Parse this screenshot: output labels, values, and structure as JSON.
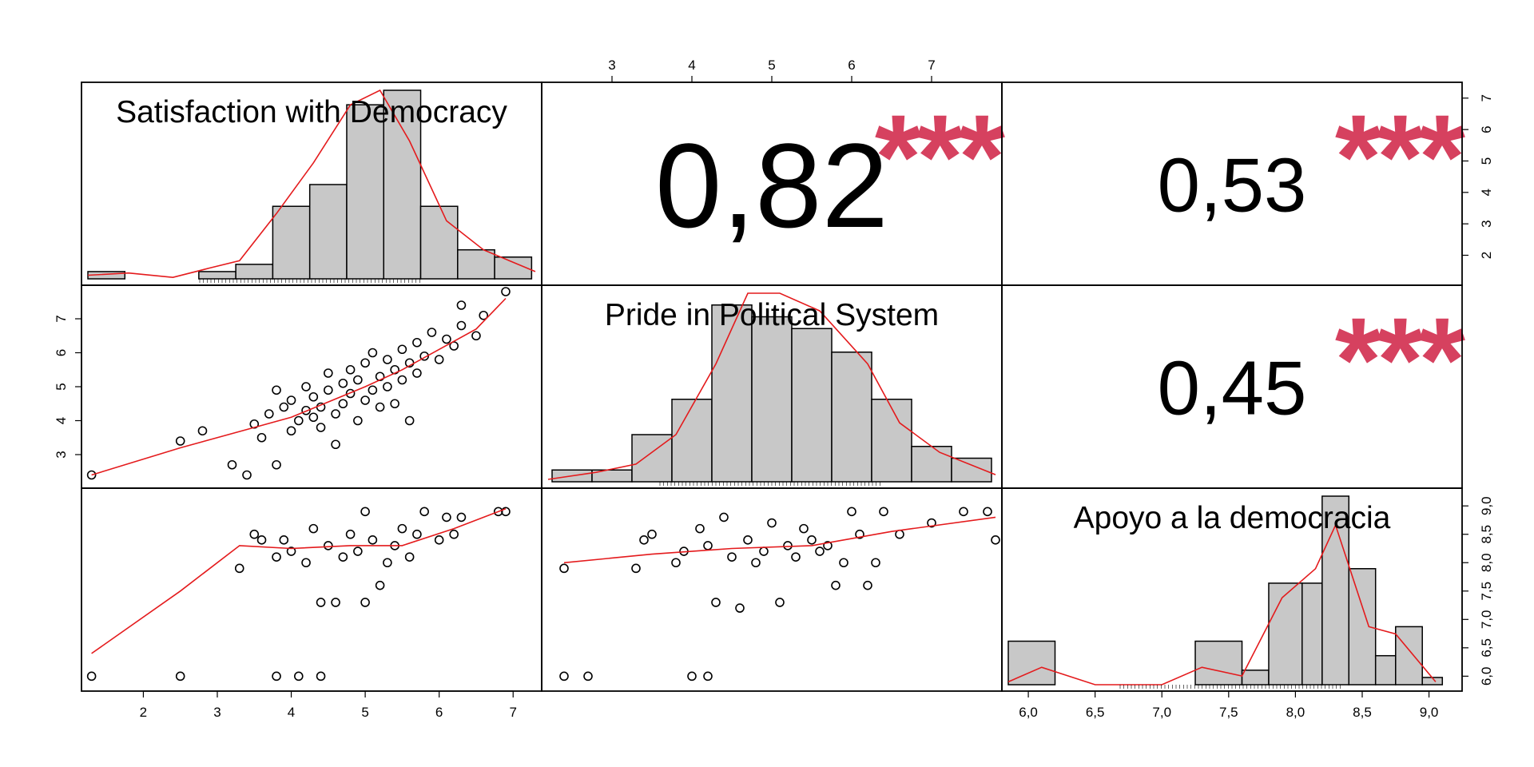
{
  "chart_data": {
    "type": "scatter-matrix",
    "variables": [
      {
        "name": "Satisfaction with Democracy",
        "ticks": [
          "2",
          "3",
          "4",
          "5",
          "6",
          "7"
        ],
        "range": [
          1.25,
          7.3
        ]
      },
      {
        "name": "Pride in Political System",
        "ticks": [
          "3",
          "4",
          "5",
          "6",
          "7"
        ],
        "range": [
          2.2,
          7.8
        ]
      },
      {
        "name": "Apoyo a la democracia",
        "ticks": [
          "6,0",
          "6,5",
          "7,0",
          "7,5",
          "8,0",
          "8,5",
          "9,0"
        ],
        "range": [
          5.85,
          9.2
        ]
      }
    ],
    "correlations": [
      {
        "pair": "Satisfaction with Democracy / Pride in Political System",
        "value": "0,82",
        "stars": "***"
      },
      {
        "pair": "Satisfaction with Democracy / Apoyo a la democracia",
        "value": "0,53",
        "stars": "***"
      },
      {
        "pair": "Pride in Political System / Apoyo a la democracia",
        "value": "0,45",
        "stars": "***"
      }
    ],
    "histograms": [
      {
        "variable": "Satisfaction with Democracy",
        "breaks": [
          1.25,
          1.75,
          2.25,
          2.75,
          3.25,
          3.75,
          4.25,
          4.75,
          5.25,
          5.75,
          6.25,
          6.75,
          7.25
        ],
        "counts": [
          1,
          0,
          0,
          1,
          2,
          10,
          13,
          24,
          26,
          10,
          4,
          3
        ],
        "density": [
          [
            1.25,
            0.5
          ],
          [
            1.8,
            0.8
          ],
          [
            2.4,
            0.2
          ],
          [
            2.9,
            1.5
          ],
          [
            3.3,
            2.5
          ],
          [
            3.8,
            9
          ],
          [
            4.3,
            16
          ],
          [
            4.8,
            24
          ],
          [
            5.2,
            26
          ],
          [
            5.6,
            19
          ],
          [
            6.1,
            8
          ],
          [
            6.6,
            4
          ],
          [
            7.3,
            1
          ]
        ]
      },
      {
        "variable": "Pride in Political System",
        "breaks": [
          2.25,
          2.75,
          3.25,
          3.75,
          4.25,
          4.75,
          5.25,
          5.75,
          6.25,
          6.75,
          7.25,
          7.75
        ],
        "counts": [
          1,
          1,
          4,
          7,
          15,
          14,
          13,
          11,
          7,
          3,
          2
        ],
        "density": [
          [
            2.2,
            0.2
          ],
          [
            2.8,
            0.8
          ],
          [
            3.3,
            1.5
          ],
          [
            3.8,
            4
          ],
          [
            4.3,
            10
          ],
          [
            4.7,
            16
          ],
          [
            5.1,
            16
          ],
          [
            5.6,
            14.5
          ],
          [
            6.2,
            10
          ],
          [
            6.6,
            5
          ],
          [
            7.1,
            2.5
          ],
          [
            7.8,
            0.6
          ]
        ]
      },
      {
        "variable": "Apoyo a la democracia",
        "breaks": [
          5.85,
          6.2,
          6.55,
          6.9,
          7.25,
          7.6,
          7.8,
          8.05,
          8.2,
          8.4,
          8.6,
          8.75,
          8.95,
          9.1
        ],
        "counts": [
          3,
          0,
          0,
          0,
          3,
          1,
          7,
          7,
          13,
          8,
          2,
          4,
          0.5
        ],
        "density": [
          [
            5.85,
            0.2
          ],
          [
            6.1,
            1.2
          ],
          [
            6.5,
            0
          ],
          [
            7.0,
            0
          ],
          [
            7.3,
            1.2
          ],
          [
            7.6,
            0.6
          ],
          [
            7.9,
            6
          ],
          [
            8.15,
            8
          ],
          [
            8.3,
            11
          ],
          [
            8.55,
            4
          ],
          [
            8.75,
            3.5
          ],
          [
            9.05,
            0.2
          ]
        ]
      }
    ],
    "scatter": [
      {
        "x_variable": "Satisfaction with Democracy",
        "y_variable": "Pride in Political System",
        "points": [
          [
            1.3,
            2.4
          ],
          [
            2.5,
            3.4
          ],
          [
            2.8,
            3.7
          ],
          [
            3.2,
            2.7
          ],
          [
            3.4,
            2.4
          ],
          [
            3.5,
            3.9
          ],
          [
            3.6,
            3.5
          ],
          [
            3.7,
            4.2
          ],
          [
            3.8,
            2.7
          ],
          [
            3.8,
            4.9
          ],
          [
            3.9,
            4.4
          ],
          [
            4.0,
            3.7
          ],
          [
            4.0,
            4.6
          ],
          [
            4.1,
            4.0
          ],
          [
            4.2,
            4.3
          ],
          [
            4.2,
            5.0
          ],
          [
            4.3,
            4.1
          ],
          [
            4.3,
            4.7
          ],
          [
            4.4,
            3.8
          ],
          [
            4.4,
            4.4
          ],
          [
            4.5,
            4.9
          ],
          [
            4.5,
            5.4
          ],
          [
            4.6,
            3.3
          ],
          [
            4.6,
            4.2
          ],
          [
            4.7,
            4.5
          ],
          [
            4.7,
            5.1
          ],
          [
            4.8,
            4.8
          ],
          [
            4.8,
            5.5
          ],
          [
            4.9,
            4.0
          ],
          [
            4.9,
            5.2
          ],
          [
            5.0,
            4.6
          ],
          [
            5.0,
            5.7
          ],
          [
            5.1,
            4.9
          ],
          [
            5.1,
            6.0
          ],
          [
            5.2,
            4.4
          ],
          [
            5.2,
            5.3
          ],
          [
            5.3,
            5.0
          ],
          [
            5.3,
            5.8
          ],
          [
            5.4,
            4.5
          ],
          [
            5.4,
            5.5
          ],
          [
            5.5,
            6.1
          ],
          [
            5.5,
            5.2
          ],
          [
            5.6,
            4.0
          ],
          [
            5.6,
            5.7
          ],
          [
            5.7,
            6.3
          ],
          [
            5.7,
            5.4
          ],
          [
            5.8,
            5.9
          ],
          [
            5.9,
            6.6
          ],
          [
            6.0,
            5.8
          ],
          [
            6.1,
            6.4
          ],
          [
            6.2,
            6.2
          ],
          [
            6.3,
            6.8
          ],
          [
            6.3,
            7.4
          ],
          [
            6.5,
            6.5
          ],
          [
            6.6,
            7.1
          ],
          [
            6.9,
            7.8
          ]
        ],
        "smooth": [
          [
            1.3,
            2.4
          ],
          [
            2.5,
            3.2
          ],
          [
            3.5,
            3.8
          ],
          [
            4.0,
            4.1
          ],
          [
            4.5,
            4.55
          ],
          [
            5.0,
            5.0
          ],
          [
            5.5,
            5.5
          ],
          [
            6.0,
            6.1
          ],
          [
            6.5,
            6.7
          ],
          [
            6.9,
            7.6
          ]
        ]
      },
      {
        "x_variable": "Satisfaction with Democracy",
        "y_variable": "Apoyo a la democracia",
        "points": [
          [
            1.3,
            6.0
          ],
          [
            2.5,
            6.0
          ],
          [
            3.3,
            7.9
          ],
          [
            3.5,
            8.5
          ],
          [
            3.6,
            8.4
          ],
          [
            3.8,
            8.1
          ],
          [
            3.8,
            6.0
          ],
          [
            3.9,
            8.4
          ],
          [
            4.0,
            8.2
          ],
          [
            4.1,
            6.0
          ],
          [
            4.2,
            8.0
          ],
          [
            4.3,
            8.6
          ],
          [
            4.4,
            7.3
          ],
          [
            4.4,
            6.0
          ],
          [
            4.5,
            8.3
          ],
          [
            4.6,
            7.3
          ],
          [
            4.7,
            8.1
          ],
          [
            4.8,
            8.5
          ],
          [
            4.9,
            8.2
          ],
          [
            5.0,
            7.3
          ],
          [
            5.0,
            8.9
          ],
          [
            5.1,
            8.4
          ],
          [
            5.2,
            7.6
          ],
          [
            5.3,
            8.0
          ],
          [
            5.4,
            8.3
          ],
          [
            5.5,
            8.6
          ],
          [
            5.6,
            8.1
          ],
          [
            5.7,
            8.5
          ],
          [
            5.8,
            8.9
          ],
          [
            6.0,
            8.4
          ],
          [
            6.1,
            8.8
          ],
          [
            6.2,
            8.5
          ],
          [
            6.3,
            8.8
          ],
          [
            6.8,
            8.9
          ],
          [
            6.9,
            8.9
          ]
        ],
        "smooth": [
          [
            1.3,
            6.4
          ],
          [
            2.5,
            7.5
          ],
          [
            3.3,
            8.3
          ],
          [
            4.0,
            8.25
          ],
          [
            4.8,
            8.3
          ],
          [
            5.5,
            8.3
          ],
          [
            6.2,
            8.6
          ],
          [
            6.9,
            8.95
          ]
        ]
      },
      {
        "x_variable": "Pride in Political System",
        "y_variable": "Apoyo a la democracia",
        "points": [
          [
            2.4,
            7.9
          ],
          [
            2.4,
            6.0
          ],
          [
            2.7,
            6.0
          ],
          [
            3.3,
            7.9
          ],
          [
            3.4,
            8.4
          ],
          [
            3.5,
            8.5
          ],
          [
            3.8,
            8.0
          ],
          [
            3.9,
            8.2
          ],
          [
            4.0,
            6.0
          ],
          [
            4.1,
            8.6
          ],
          [
            4.2,
            6.0
          ],
          [
            4.2,
            8.3
          ],
          [
            4.3,
            7.3
          ],
          [
            4.4,
            8.8
          ],
          [
            4.5,
            8.1
          ],
          [
            4.6,
            7.2
          ],
          [
            4.7,
            8.4
          ],
          [
            4.8,
            8.0
          ],
          [
            4.9,
            8.2
          ],
          [
            5.0,
            8.7
          ],
          [
            5.1,
            7.3
          ],
          [
            5.2,
            8.3
          ],
          [
            5.3,
            8.1
          ],
          [
            5.4,
            8.6
          ],
          [
            5.5,
            8.4
          ],
          [
            5.6,
            8.2
          ],
          [
            5.7,
            8.3
          ],
          [
            5.8,
            7.6
          ],
          [
            5.9,
            8.0
          ],
          [
            6.0,
            8.9
          ],
          [
            6.1,
            8.5
          ],
          [
            6.2,
            7.6
          ],
          [
            6.3,
            8.0
          ],
          [
            6.4,
            8.9
          ],
          [
            6.6,
            8.5
          ],
          [
            7.0,
            8.7
          ],
          [
            7.4,
            8.9
          ],
          [
            7.7,
            8.9
          ],
          [
            7.8,
            8.4
          ]
        ],
        "smooth": [
          [
            2.4,
            8.0
          ],
          [
            3.5,
            8.15
          ],
          [
            4.5,
            8.25
          ],
          [
            5.5,
            8.3
          ],
          [
            6.5,
            8.55
          ],
          [
            7.8,
            8.8
          ]
        ]
      }
    ],
    "colors": {
      "smooth": "#e41a1c",
      "stars": "#d6415f",
      "bars": "#c8c8c8"
    }
  }
}
